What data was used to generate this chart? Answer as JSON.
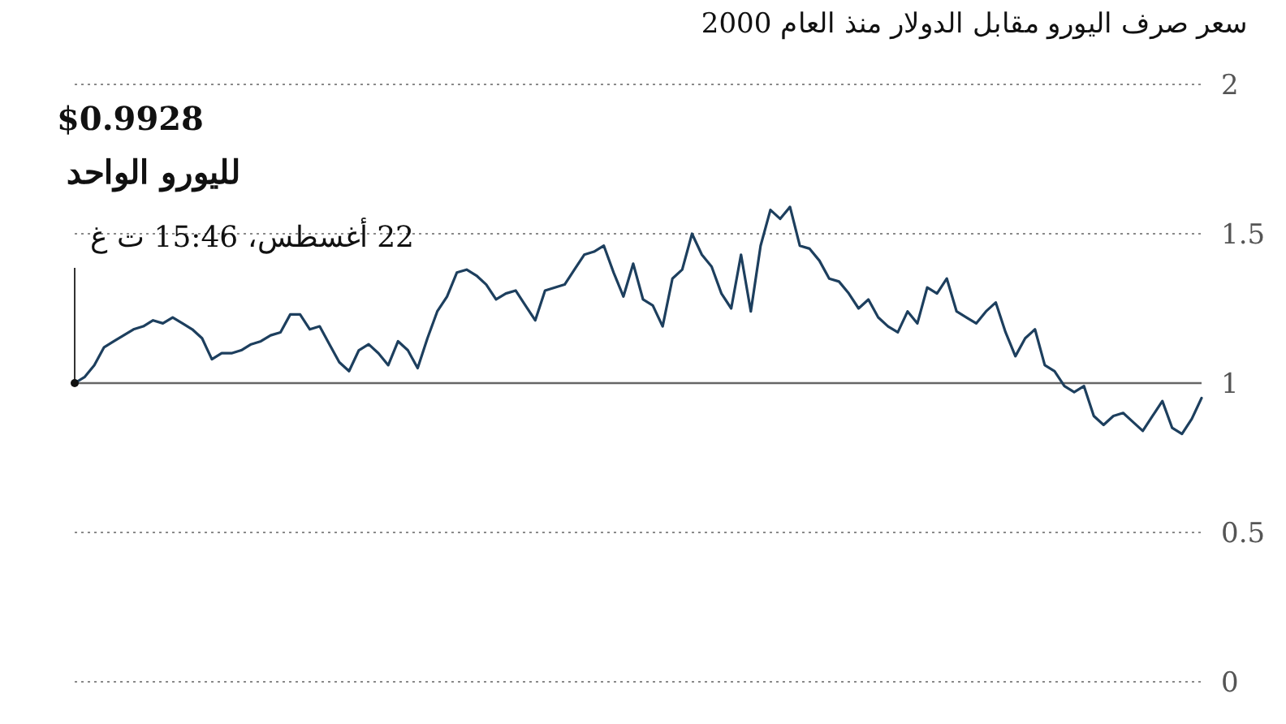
{
  "chart_data": {
    "type": "line",
    "title": "سعر صرف اليورو مقابل الدولار منذ العام 2000",
    "annotations": [
      "$0.9928",
      "لليورو الواحد",
      "22 أغسطس، 15:46 ت غ"
    ],
    "categories": [
      null,
      null,
      null,
      null,
      null,
      null,
      null,
      null,
      null,
      null,
      null,
      null,
      null,
      null,
      null,
      null,
      null,
      null,
      null,
      null,
      null,
      null,
      null,
      null,
      null,
      null,
      null,
      null,
      null,
      null,
      null,
      null,
      null,
      null,
      null,
      null,
      null,
      null,
      null,
      null,
      null,
      null,
      null,
      null,
      null,
      null,
      null,
      null,
      null,
      null,
      null,
      null,
      null,
      null,
      null,
      null,
      null,
      null,
      null,
      null,
      null,
      null,
      null,
      null,
      null,
      null,
      null,
      null,
      null,
      null,
      null,
      null,
      null,
      null,
      null,
      null,
      null,
      null,
      null,
      null,
      null,
      null,
      null,
      null,
      null,
      null,
      null,
      null,
      null,
      null,
      null,
      null,
      null,
      null,
      null,
      null,
      null,
      null,
      null,
      null,
      null,
      null,
      null,
      null,
      null,
      null,
      null,
      null,
      null,
      null,
      null,
      null,
      null,
      null,
      null,
      null
    ],
    "series": [
      {
        "color": "#1d3f5e",
        "values": [
          1.0,
          1.02,
          1.06,
          1.12,
          1.14,
          1.16,
          1.18,
          1.19,
          1.21,
          1.2,
          1.22,
          1.2,
          1.18,
          1.15,
          1.08,
          1.1,
          1.1,
          1.11,
          1.13,
          1.14,
          1.16,
          1.17,
          1.23,
          1.23,
          1.18,
          1.19,
          1.13,
          1.07,
          1.04,
          1.11,
          1.13,
          1.1,
          1.06,
          1.14,
          1.11,
          1.05,
          1.15,
          1.24,
          1.29,
          1.37,
          1.38,
          1.36,
          1.33,
          1.28,
          1.3,
          1.31,
          1.26,
          1.21,
          1.31,
          1.32,
          1.33,
          1.38,
          1.43,
          1.44,
          1.46,
          1.37,
          1.29,
          1.4,
          1.28,
          1.26,
          1.19,
          1.35,
          1.38,
          1.5,
          1.43,
          1.39,
          1.3,
          1.25,
          1.43,
          1.24,
          1.46,
          1.58,
          1.55,
          1.59,
          1.46,
          1.45,
          1.41,
          1.35,
          1.34,
          1.3,
          1.25,
          1.28,
          1.22,
          1.19,
          1.17,
          1.24,
          1.2,
          1.32,
          1.3,
          1.35,
          1.24,
          1.22,
          1.2,
          1.24,
          1.27,
          1.17,
          1.09,
          1.15,
          1.18,
          1.06,
          1.04,
          0.99,
          0.97,
          0.99,
          0.89,
          0.86,
          0.89,
          0.9,
          0.87,
          0.84,
          0.89,
          0.94,
          0.85,
          0.83,
          0.88,
          0.95
        ]
      }
    ],
    "ylim": [
      0,
      2
    ],
    "yticks": [
      0,
      0.5,
      1,
      1.5,
      2
    ],
    "grid": "y",
    "ref_lines": [
      {
        "axis": "y",
        "value": 1,
        "color": "#666666",
        "line_style": "solid"
      }
    ],
    "marker": "none",
    "line_style": "solid"
  }
}
